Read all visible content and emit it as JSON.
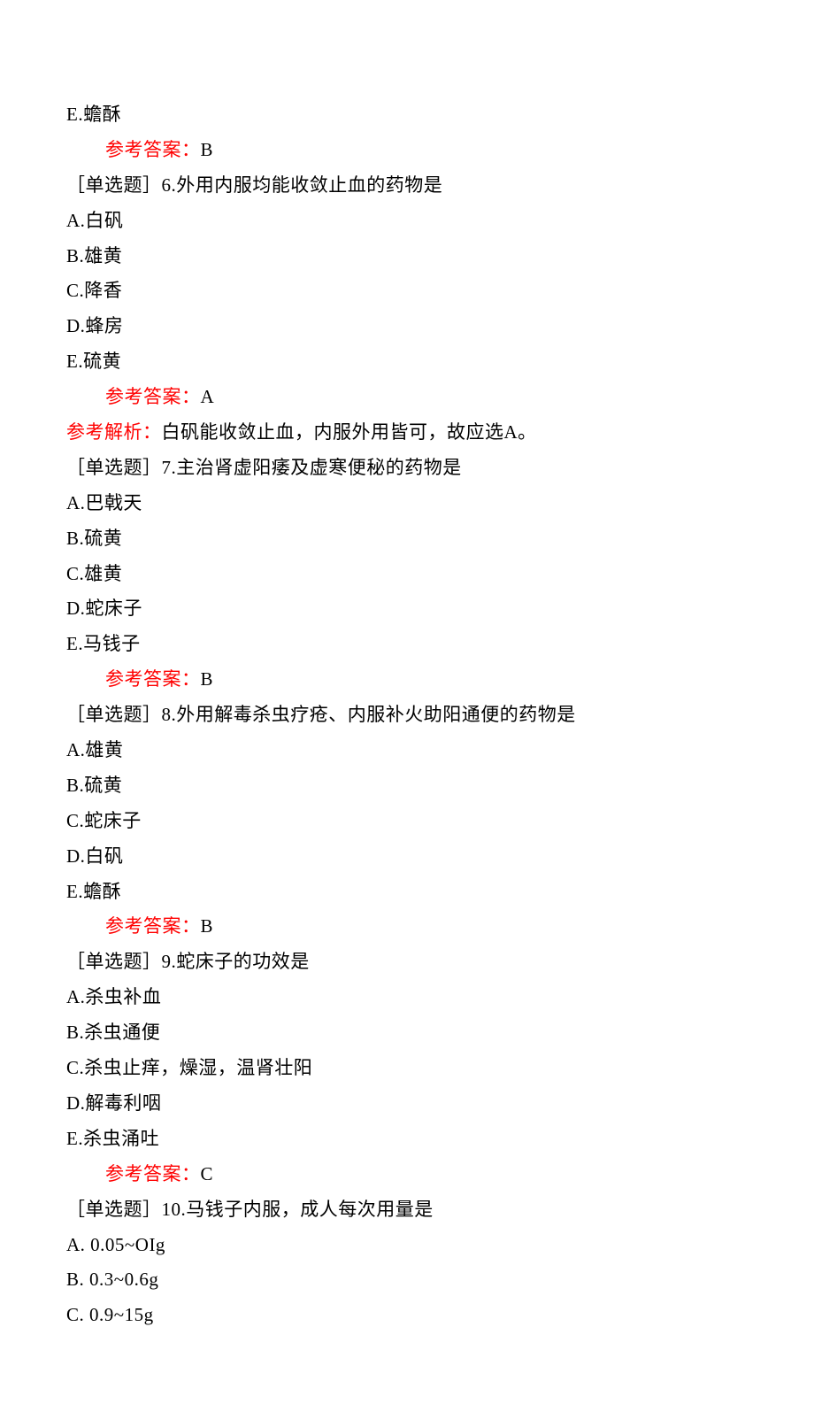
{
  "colors": {
    "text": "#000000",
    "highlight": "#ff0000",
    "background": "#ffffff"
  },
  "typography": {
    "fontFamily": "SimSun",
    "fontSize": 21,
    "lineHeight": 1.9
  },
  "labels": {
    "answerPrefix": "参考答案：",
    "analysisPrefix": "参考解析："
  },
  "lines": [
    {
      "text": "E.蟾酥"
    },
    {
      "indent": true,
      "answer": true,
      "value": "B"
    },
    {
      "text": "［单选题］6.外用内服均能收敛止血的药物是"
    },
    {
      "text": "A.白矾"
    },
    {
      "text": "B.雄黄"
    },
    {
      "text": "C.降香"
    },
    {
      "text": "D.蜂房"
    },
    {
      "text": "E.硫黄"
    },
    {
      "indent": true,
      "answer": true,
      "value": "A"
    },
    {
      "analysis": true,
      "value": "白矾能收敛止血，内服外用皆可，故应选A。"
    },
    {
      "text": "［单选题］7.主治肾虚阳痿及虚寒便秘的药物是"
    },
    {
      "text": "A.巴戟天"
    },
    {
      "text": "B.硫黄"
    },
    {
      "text": "C.雄黄"
    },
    {
      "text": "D.蛇床子"
    },
    {
      "text": "E.马钱子"
    },
    {
      "indent": true,
      "answer": true,
      "value": "B"
    },
    {
      "text": "［单选题］8.外用解毒杀虫疗疮、内服补火助阳通便的药物是"
    },
    {
      "text": "A.雄黄"
    },
    {
      "text": "B.硫黄"
    },
    {
      "text": "C.蛇床子"
    },
    {
      "text": "D.白矾"
    },
    {
      "text": "E.蟾酥"
    },
    {
      "indent": true,
      "answer": true,
      "value": "B"
    },
    {
      "text": "［单选题］9.蛇床子的功效是"
    },
    {
      "text": "A.杀虫补血"
    },
    {
      "text": "B.杀虫通便"
    },
    {
      "text": "C.杀虫止痒，燥湿，温肾壮阳"
    },
    {
      "text": "D.解毒利咽"
    },
    {
      "text": "E.杀虫涌吐"
    },
    {
      "indent": true,
      "answer": true,
      "value": "C"
    },
    {
      "text": "［单选题］10.马钱子内服，成人每次用量是"
    },
    {
      "text": "A. 0.05~OIg"
    },
    {
      "text": "B. 0.3~0.6g"
    },
    {
      "text": "C. 0.9~15g"
    }
  ]
}
